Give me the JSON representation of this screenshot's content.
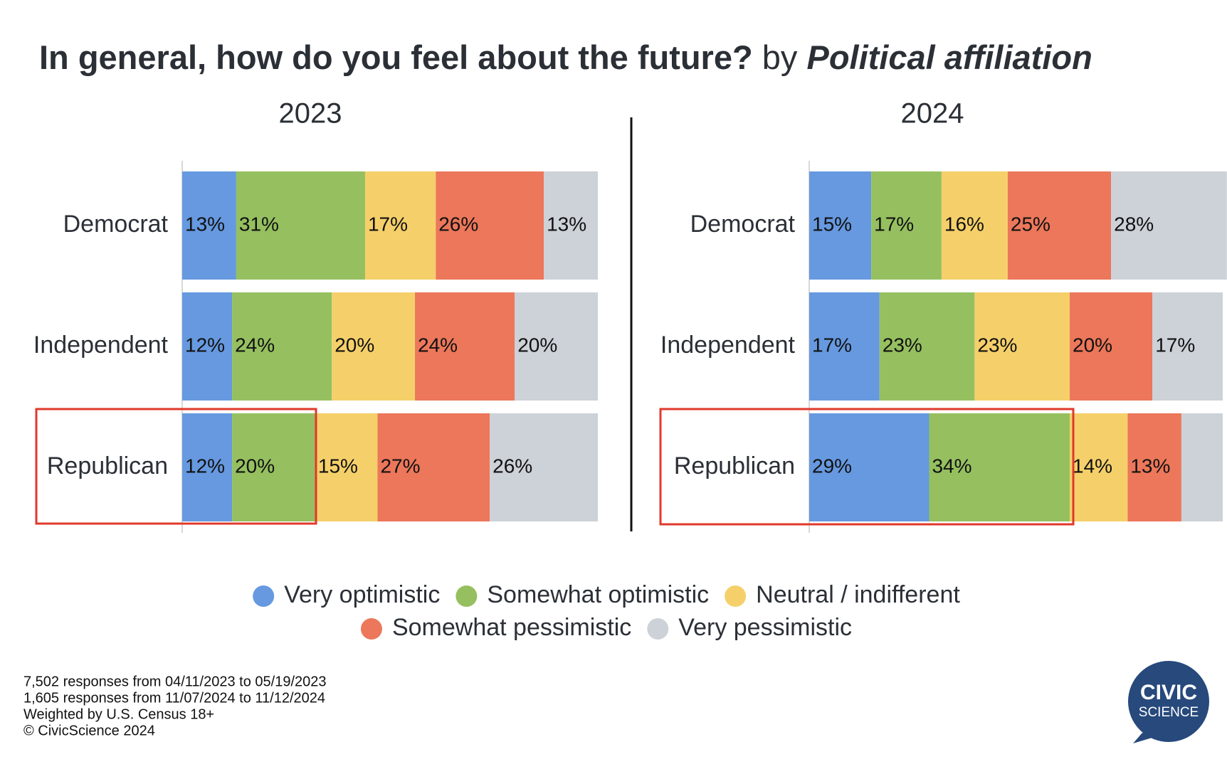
{
  "title": {
    "main": "In general, how do you feel about the future?",
    "by": "by",
    "facet": "Political affiliation"
  },
  "chart_data": [
    {
      "type": "stacked_bar_horizontal",
      "title": "2023",
      "categories": [
        "Democrat",
        "Independent",
        "Republican"
      ],
      "xlim": [
        0,
        100
      ],
      "series": [
        {
          "name": "Very optimistic",
          "color": "#6699e0",
          "values": [
            13,
            12,
            12
          ],
          "value_labels": [
            "13%",
            "12%",
            "12%"
          ]
        },
        {
          "name": "Somewhat optimistic",
          "color": "#96c060",
          "values": [
            31,
            24,
            20
          ],
          "value_labels": [
            "31%",
            "24%",
            "20%"
          ]
        },
        {
          "name": "Neutral / indifferent",
          "color": "#f5d06a",
          "values": [
            17,
            20,
            15
          ],
          "value_labels": [
            "17%",
            "20%",
            "15%"
          ]
        },
        {
          "name": "Somewhat pessimistic",
          "color": "#ec775a",
          "values": [
            26,
            24,
            27
          ],
          "value_labels": [
            "26%",
            "24%",
            "27%"
          ]
        },
        {
          "name": "Very pessimistic",
          "color": "#cdd1d8",
          "values": [
            13,
            20,
            26
          ],
          "value_labels": [
            "13%",
            "20%",
            "26%"
          ]
        }
      ]
    },
    {
      "type": "stacked_bar_horizontal",
      "title": "2024",
      "categories": [
        "Democrat",
        "Independent",
        "Republican"
      ],
      "xlim": [
        0,
        100
      ],
      "series": [
        {
          "name": "Very optimistic",
          "color": "#6699e0",
          "values": [
            15,
            17,
            29
          ],
          "value_labels": [
            "15%",
            "17%",
            "29%"
          ]
        },
        {
          "name": "Somewhat optimistic",
          "color": "#96c060",
          "values": [
            17,
            23,
            34
          ],
          "value_labels": [
            "17%",
            "23%",
            "34%"
          ]
        },
        {
          "name": "Neutral / indifferent",
          "color": "#f5d06a",
          "values": [
            16,
            23,
            14
          ],
          "value_labels": [
            "16%",
            "23%",
            "14%"
          ]
        },
        {
          "name": "Somewhat pessimistic",
          "color": "#ec775a",
          "values": [
            25,
            20,
            13
          ],
          "value_labels": [
            "25%",
            "20%",
            "13%"
          ]
        },
        {
          "name": "Very pessimistic",
          "color": "#cdd1d8",
          "values": [
            28,
            17,
            10
          ],
          "value_labels": [
            "28%",
            "17%",
            null
          ]
        }
      ]
    }
  ],
  "footnotes": [
    "7,502 responses from 04/11/2023 to 05/19/2023",
    "1,605 responses from 11/07/2024 to 11/12/2024",
    "Weighted by U.S. Census 18+",
    "© CivicScience 2024"
  ],
  "logo": {
    "line1": "CIVIC",
    "line2": "SCIENCE"
  }
}
